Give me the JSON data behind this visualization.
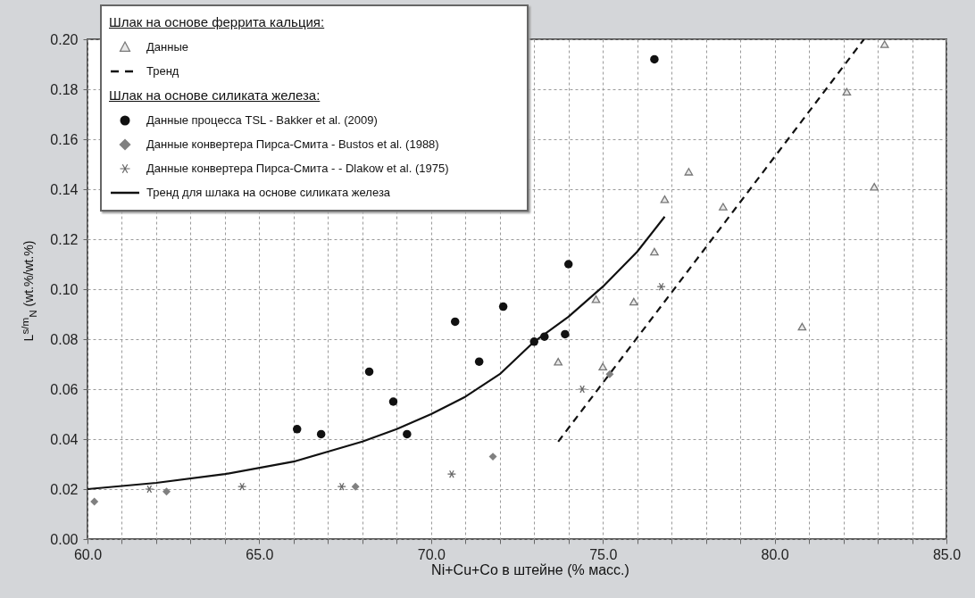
{
  "chart_data": {
    "type": "scatter",
    "xlabel": "Ni+Cu+Co в штейне (% масс.)",
    "ylabel": "L$^{s/m}$$_{N}$ (wt.%/wt.%)",
    "annotations": [
      "Шлак на основе феррита кальция:",
      "Шлак на основе силиката железа:"
    ],
    "xlim": [
      60,
      85
    ],
    "ylim": [
      0,
      0.2
    ],
    "xticks": [
      {
        "value": 60,
        "label": "60.0"
      },
      {
        "value": 61,
        "label": null
      },
      {
        "value": 62,
        "label": null
      },
      {
        "value": 63,
        "label": null
      },
      {
        "value": 64,
        "label": null
      },
      {
        "value": 65,
        "label": "65.0"
      },
      {
        "value": 66,
        "label": null
      },
      {
        "value": 67,
        "label": null
      },
      {
        "value": 68,
        "label": null
      },
      {
        "value": 69,
        "label": null
      },
      {
        "value": 70,
        "label": "70.0"
      },
      {
        "value": 71,
        "label": null
      },
      {
        "value": 72,
        "label": null
      },
      {
        "value": 73,
        "label": null
      },
      {
        "value": 74,
        "label": null
      },
      {
        "value": 75,
        "label": "75.0"
      },
      {
        "value": 76,
        "label": null
      },
      {
        "value": 77,
        "label": null
      },
      {
        "value": 78,
        "label": null
      },
      {
        "value": 79,
        "label": null
      },
      {
        "value": 80,
        "label": "80.0"
      },
      {
        "value": 81,
        "label": null
      },
      {
        "value": 82,
        "label": null
      },
      {
        "value": 83,
        "label": null
      },
      {
        "value": 84,
        "label": null
      },
      {
        "value": 85,
        "label": "85.0"
      }
    ],
    "yticks": [
      {
        "value": 0,
        "label": "0.00"
      },
      {
        "value": 0.02,
        "label": "0.02"
      },
      {
        "value": 0.04,
        "label": "0.04"
      },
      {
        "value": 0.06,
        "label": "0.06"
      },
      {
        "value": 0.08,
        "label": "0.08"
      },
      {
        "value": 0.1,
        "label": "0.10"
      },
      {
        "value": 0.12,
        "label": "0.12"
      },
      {
        "value": 0.14,
        "label": "0.14"
      },
      {
        "value": 0.16,
        "label": "0.16"
      },
      {
        "value": 0.18,
        "label": "0.18"
      },
      {
        "value": 0.2,
        "label": "0.20"
      }
    ],
    "grid": true,
    "legend": "top left",
    "series": [
      {
        "name": "Данные",
        "marker": "triangle",
        "color": "#777777",
        "x": [
          83.2,
          82.1,
          82.9,
          77.5,
          76.8,
          78.5,
          76.5,
          74.8,
          75.9,
          80.8,
          73.7,
          75.0
        ],
        "values": [
          0.198,
          0.179,
          0.141,
          0.147,
          0.136,
          0.133,
          0.115,
          0.096,
          0.095,
          0.085,
          0.071,
          0.069
        ]
      },
      {
        "name": "Тренд",
        "type": "line",
        "line_style": "dashed",
        "marker": "none",
        "color": "#111111",
        "x": [
          73.7,
          82.6
        ],
        "values": [
          0.039,
          0.2
        ]
      },
      {
        "name": "Данные процесса TSL - Bakker et al. (2009)",
        "marker": "circle",
        "color": "#111111",
        "x": [
          68.2,
          66.1,
          66.8,
          68.9,
          69.3,
          70.7,
          71.4,
          72.1,
          73.0,
          73.3,
          73.9,
          74.0,
          76.5
        ],
        "values": [
          0.067,
          0.044,
          0.042,
          0.055,
          0.042,
          0.087,
          0.071,
          0.093,
          0.079,
          0.081,
          0.082,
          0.11,
          0.192
        ]
      },
      {
        "name": "Данные конвертера Пирса-Смита - Bustos et al. (1988)",
        "marker": "diamond",
        "color": "#808080",
        "x": [
          60.2,
          62.3,
          67.8,
          71.8,
          75.2
        ],
        "values": [
          0.015,
          0.019,
          0.021,
          0.033,
          0.066
        ]
      },
      {
        "name": "Данные конвертера Пирса-Смита - - Dlakow et al. (1975)",
        "marker": "cross",
        "color": "#666666",
        "x": [
          61.8,
          64.5,
          67.4,
          70.6,
          74.4,
          76.7
        ],
        "values": [
          0.02,
          0.021,
          0.021,
          0.026,
          0.06,
          0.101
        ]
      },
      {
        "name": "Тренд для шлака на основе силиката железа",
        "type": "line",
        "line_style": "solid",
        "marker": "none",
        "color": "#111111",
        "x": [
          60,
          62,
          64,
          66,
          67,
          68,
          69,
          70,
          71,
          72,
          73,
          74,
          75,
          76,
          76.8
        ],
        "values": [
          0.02,
          0.0225,
          0.026,
          0.031,
          0.035,
          0.039,
          0.044,
          0.05,
          0.057,
          0.066,
          0.079,
          0.089,
          0.101,
          0.115,
          0.129
        ]
      }
    ]
  }
}
